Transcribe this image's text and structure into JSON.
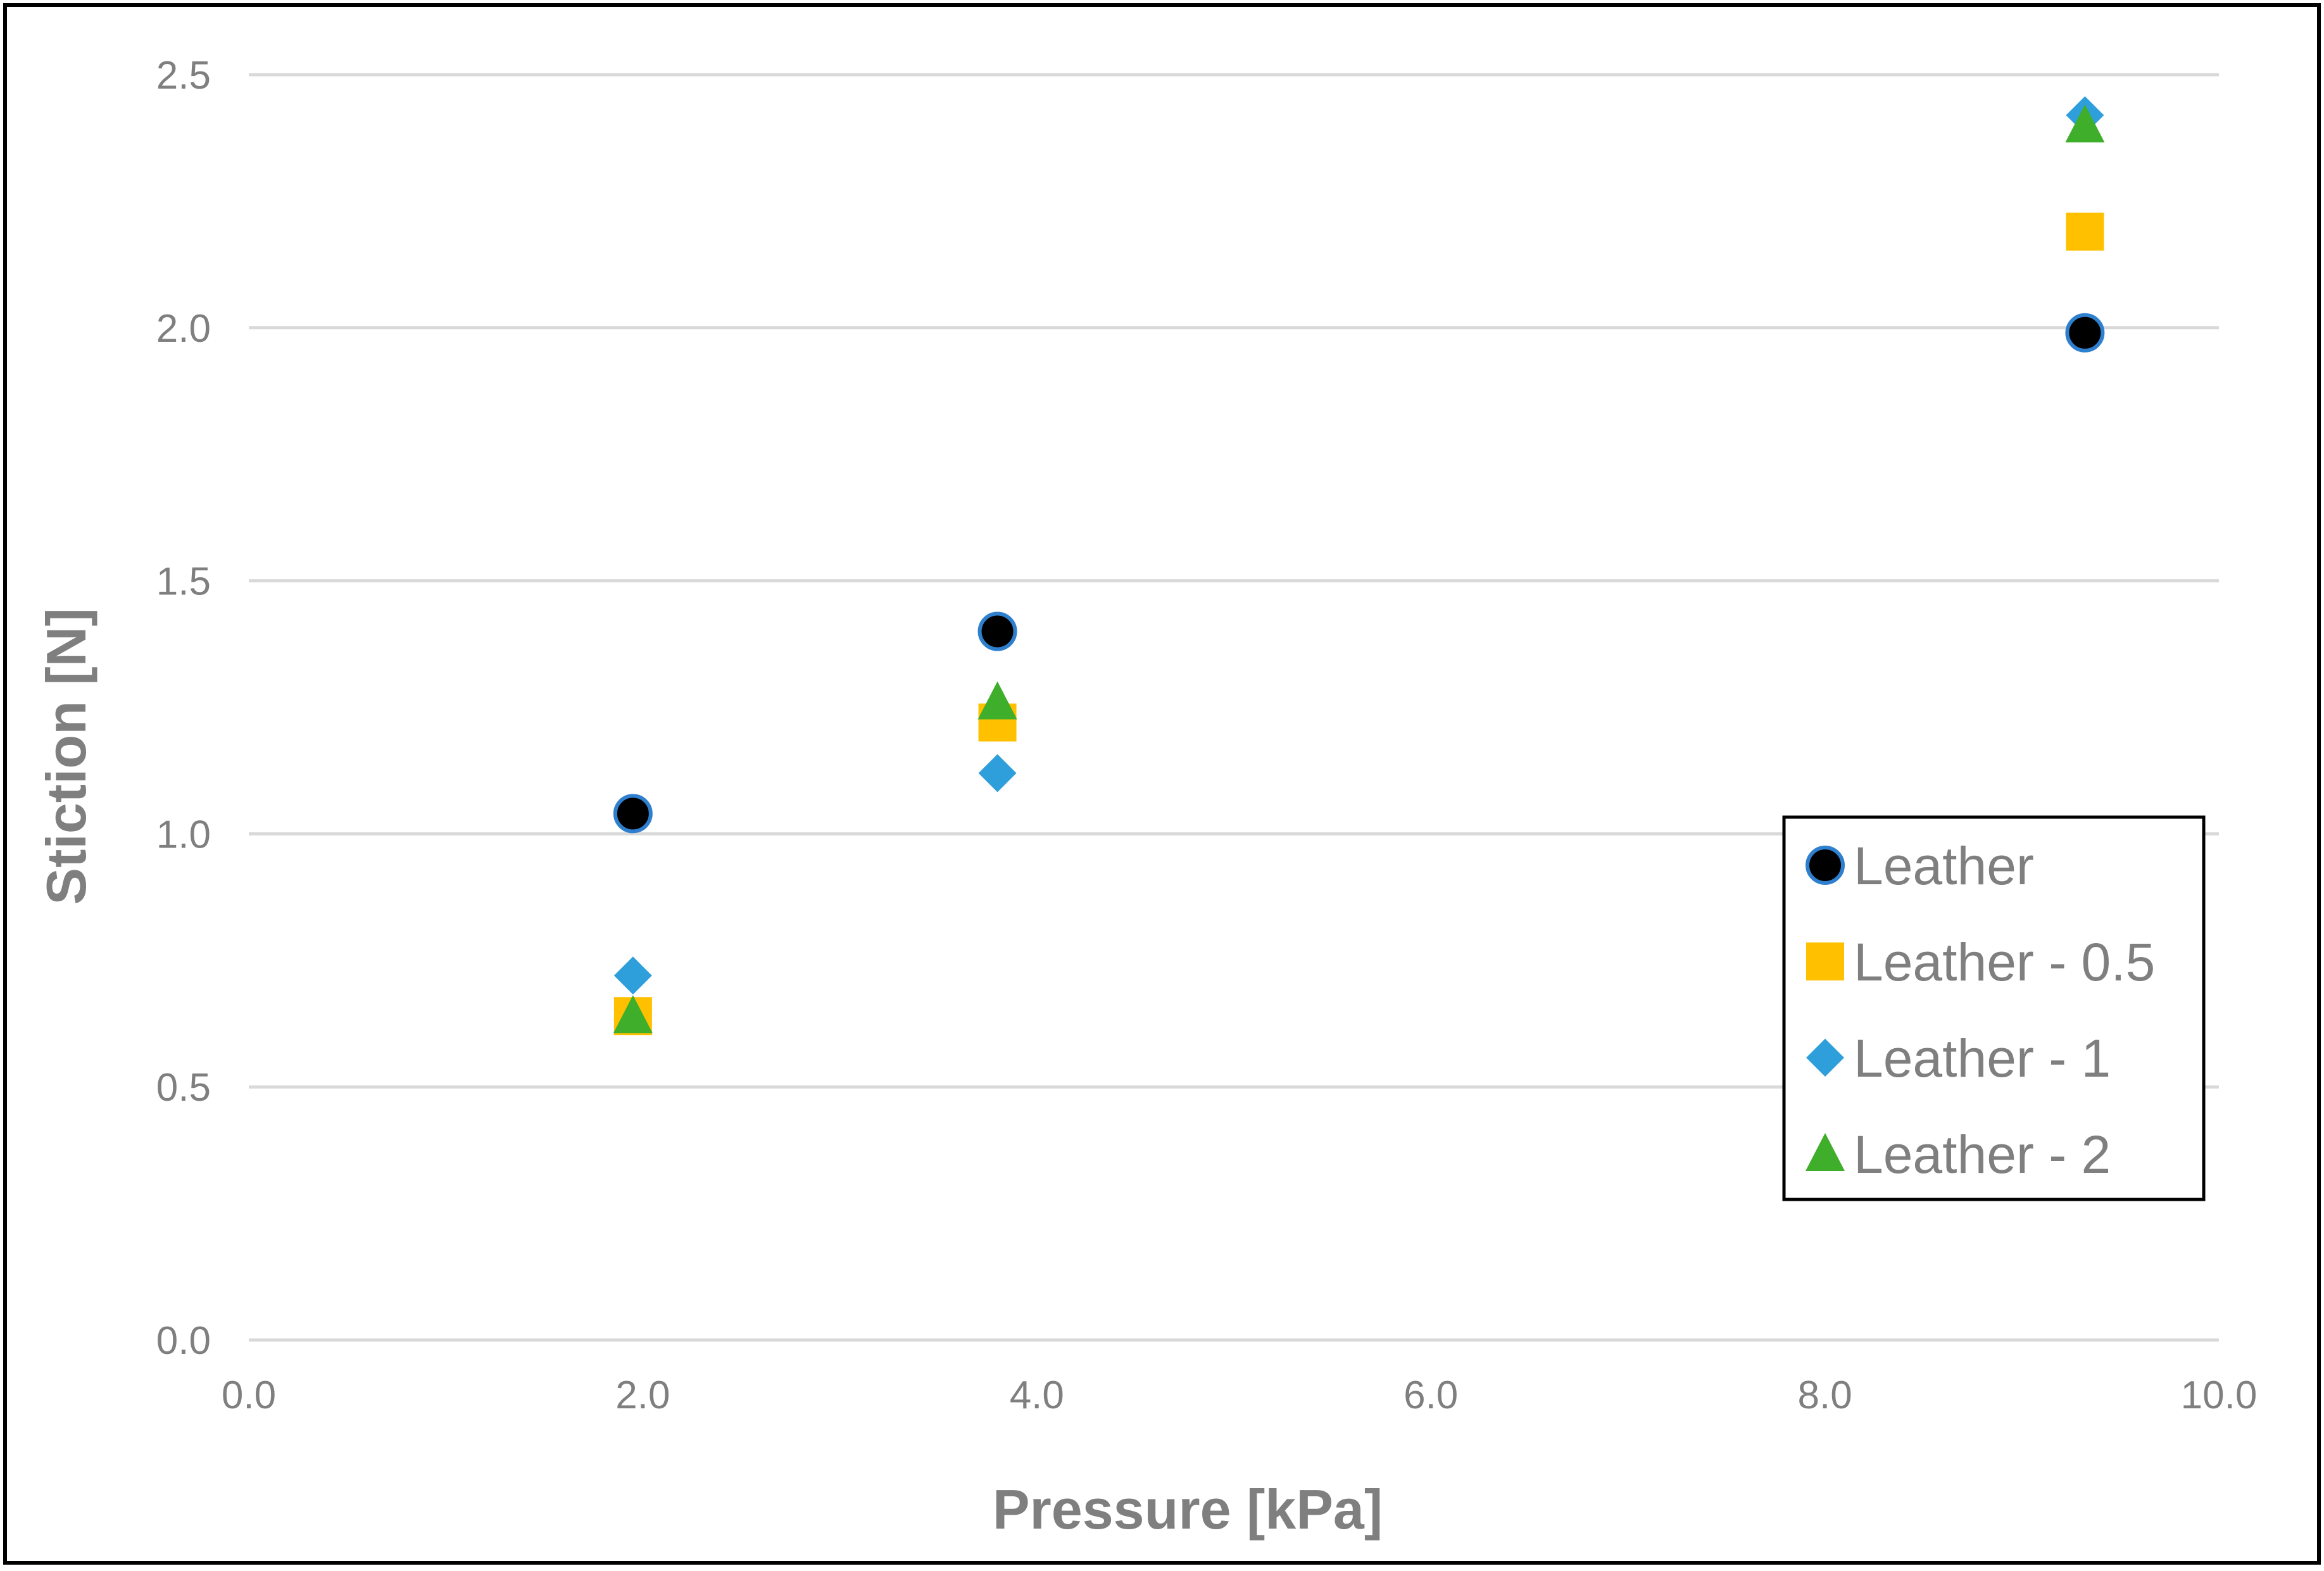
{
  "chart_data": {
    "type": "scatter",
    "title": "",
    "xlabel": "Pressure [kPa]",
    "ylabel": "Stiction [N]",
    "xlim": [
      0,
      10
    ],
    "ylim": [
      0,
      2.5
    ],
    "xticks": [
      "0.0",
      "2.0",
      "4.0",
      "6.0",
      "8.0",
      "10.0"
    ],
    "yticks": [
      "0.0",
      "0.5",
      "1.0",
      "1.5",
      "2.0",
      "2.5"
    ],
    "grid": "horizontal",
    "legend_position": "right",
    "series": [
      {
        "name": "Leather",
        "marker": "circle",
        "color": "#000000",
        "edge_color": "#2f7fcf",
        "x": [
          1.95,
          3.8,
          9.32
        ],
        "y": [
          1.04,
          1.4,
          1.99
        ]
      },
      {
        "name": "Leather - 0.5",
        "marker": "square",
        "color": "#ffc000",
        "x": [
          1.95,
          3.8,
          9.32
        ],
        "y": [
          0.64,
          1.22,
          2.19
        ]
      },
      {
        "name": "Leather - 1",
        "marker": "diamond",
        "color": "#2e9fdb",
        "x": [
          1.95,
          3.8,
          9.32
        ],
        "y": [
          0.72,
          1.12,
          2.42
        ]
      },
      {
        "name": "Leather - 2",
        "marker": "triangle",
        "color": "#3fae2a",
        "x": [
          1.95,
          3.8,
          9.32
        ],
        "y": [
          0.64,
          1.26,
          2.4
        ]
      }
    ]
  }
}
